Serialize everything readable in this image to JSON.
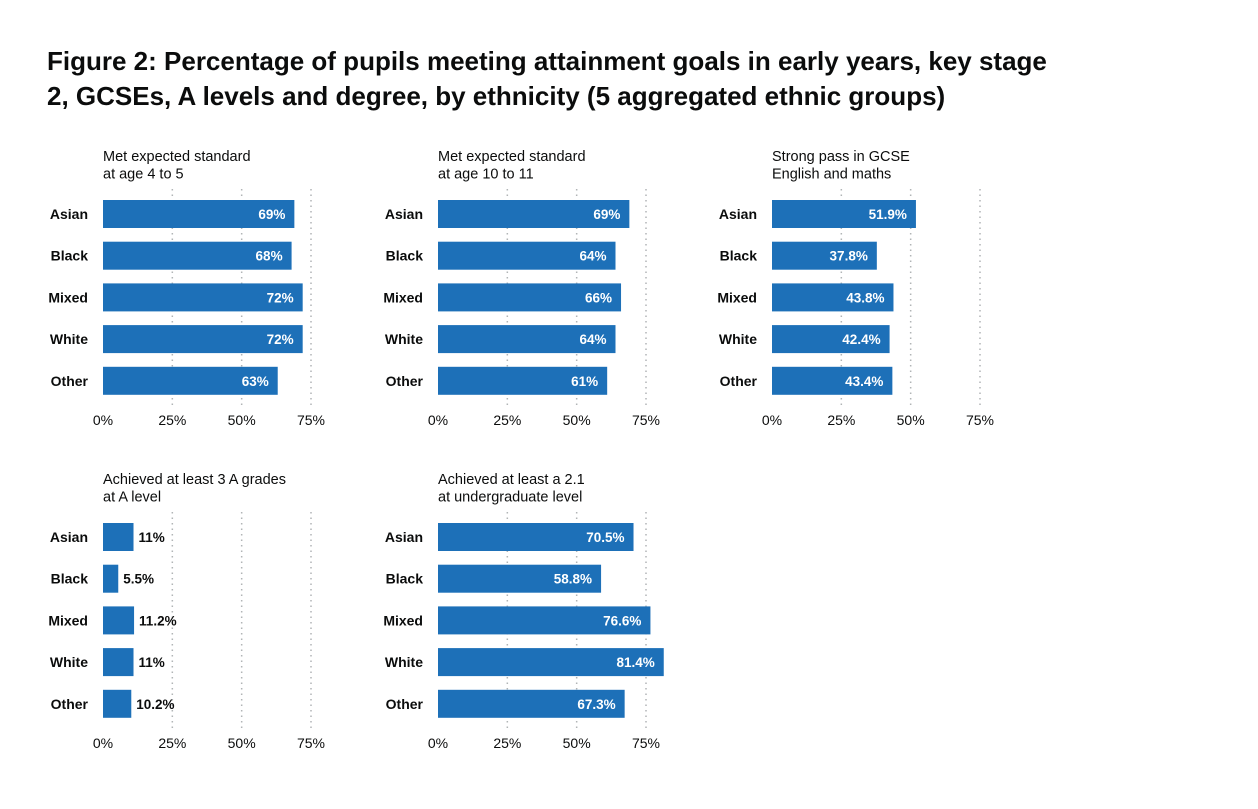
{
  "title": "Figure 2: Percentage of pupils meeting attainment goals in early years, key stage 2, GCSEs, A levels and degree, by ethnicity (5 aggregated ethnic groups)",
  "colors": {
    "bar": "#1d70b8",
    "text": "#0b0c0c",
    "gridline": "#b1b4b6"
  },
  "chart_data": [
    {
      "type": "bar",
      "orientation": "horizontal",
      "title_lines": [
        "Met expected standard",
        "at age 4 to 5"
      ],
      "categories": [
        "Asian",
        "Black",
        "Mixed",
        "White",
        "Other"
      ],
      "values": [
        69,
        68,
        72,
        72,
        63
      ],
      "data_labels": [
        "69%",
        "68%",
        "72%",
        "72%",
        "63%"
      ],
      "xlim": [
        0,
        75
      ],
      "xticks": [
        0,
        25,
        50,
        75
      ],
      "xtick_labels": [
        "0%",
        "25%",
        "50%",
        "75%"
      ],
      "grid": "vertical dotted"
    },
    {
      "type": "bar",
      "orientation": "horizontal",
      "title_lines": [
        "Met expected standard",
        "at age 10 to 11"
      ],
      "categories": [
        "Asian",
        "Black",
        "Mixed",
        "White",
        "Other"
      ],
      "values": [
        69,
        64,
        66,
        64,
        61
      ],
      "data_labels": [
        "69%",
        "64%",
        "66%",
        "64%",
        "61%"
      ],
      "xlim": [
        0,
        75
      ],
      "xticks": [
        0,
        25,
        50,
        75
      ],
      "xtick_labels": [
        "0%",
        "25%",
        "50%",
        "75%"
      ],
      "grid": "vertical dotted"
    },
    {
      "type": "bar",
      "orientation": "horizontal",
      "title_lines": [
        "Strong pass in GCSE",
        "English and maths"
      ],
      "categories": [
        "Asian",
        "Black",
        "Mixed",
        "White",
        "Other"
      ],
      "values": [
        51.9,
        37.8,
        43.8,
        42.4,
        43.4
      ],
      "data_labels": [
        "51.9%",
        "37.8%",
        "43.8%",
        "42.4%",
        "43.4%"
      ],
      "xlim": [
        0,
        75
      ],
      "xticks": [
        0,
        25,
        50,
        75
      ],
      "xtick_labels": [
        "0%",
        "25%",
        "50%",
        "75%"
      ],
      "grid": "vertical dotted"
    },
    {
      "type": "bar",
      "orientation": "horizontal",
      "title_lines": [
        "Achieved at least 3 A grades",
        "at A level"
      ],
      "categories": [
        "Asian",
        "Black",
        "Mixed",
        "White",
        "Other"
      ],
      "values": [
        11,
        5.5,
        11.2,
        11,
        10.2
      ],
      "data_labels": [
        "11%",
        "5.5%",
        "11.2%",
        "11%",
        "10.2%"
      ],
      "xlim": [
        0,
        75
      ],
      "xticks": [
        0,
        25,
        50,
        75
      ],
      "xtick_labels": [
        "0%",
        "25%",
        "50%",
        "75%"
      ],
      "grid": "vertical dotted"
    },
    {
      "type": "bar",
      "orientation": "horizontal",
      "title_lines": [
        "Achieved at least a 2.1",
        "at undergraduate level"
      ],
      "categories": [
        "Asian",
        "Black",
        "Mixed",
        "White",
        "Other"
      ],
      "values": [
        70.5,
        58.8,
        76.6,
        81.4,
        67.3
      ],
      "data_labels": [
        "70.5%",
        "58.8%",
        "76.6%",
        "81.4%",
        "67.3%"
      ],
      "xlim": [
        0,
        75
      ],
      "xticks": [
        0,
        25,
        50,
        75
      ],
      "xtick_labels": [
        "0%",
        "25%",
        "50%",
        "75%"
      ],
      "grid": "vertical dotted"
    }
  ]
}
